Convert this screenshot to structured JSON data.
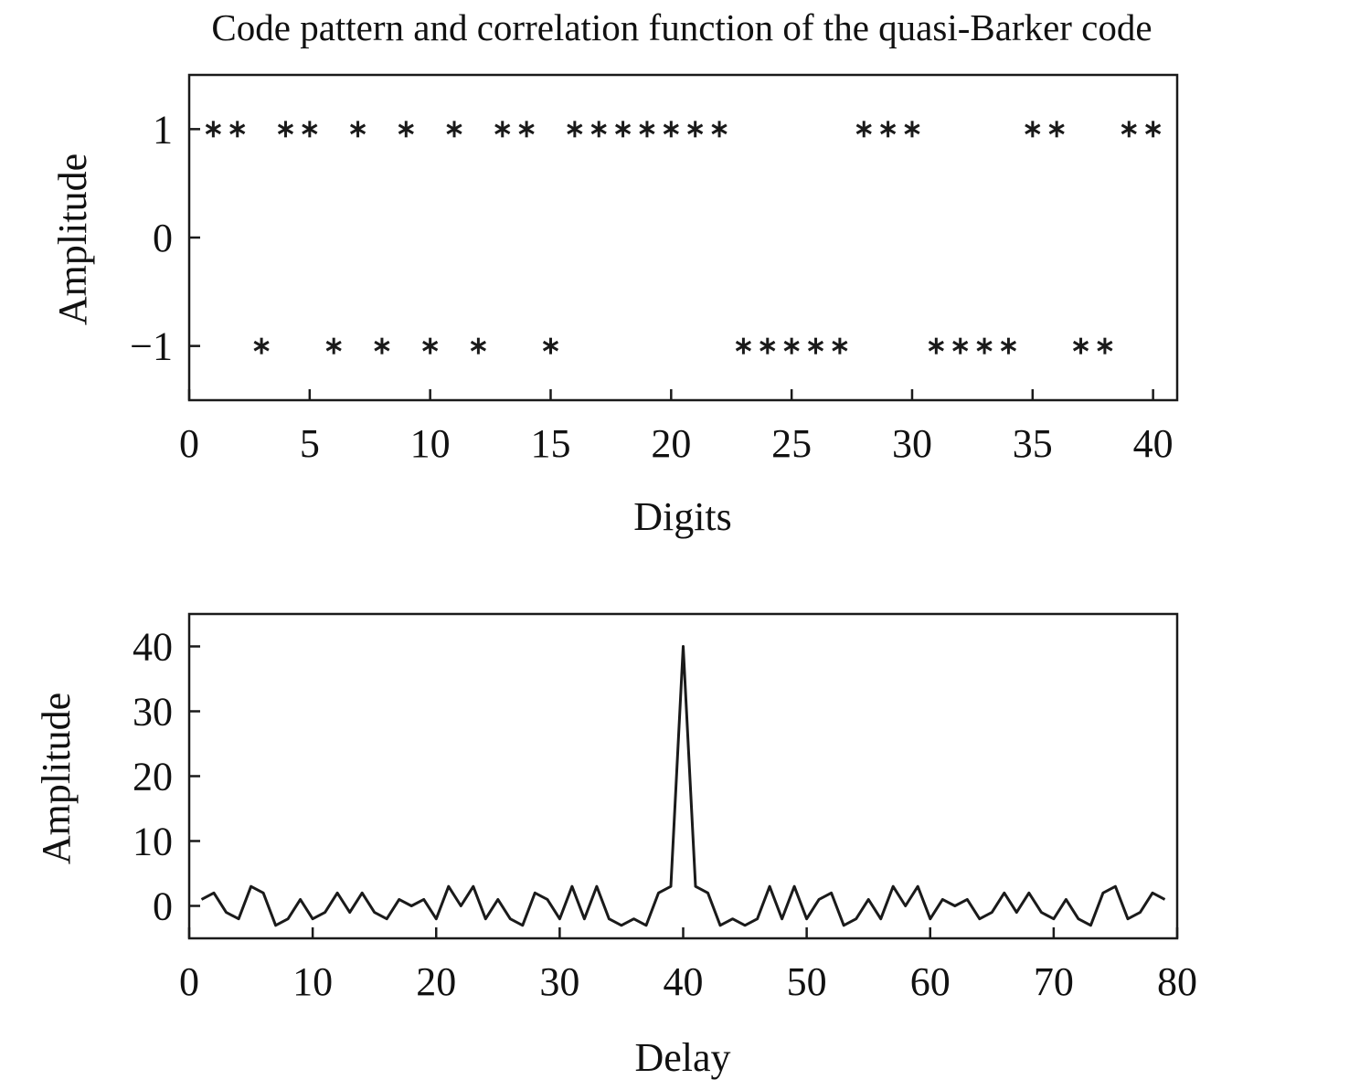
{
  "title": "Code pattern and correlation function of the quasi-Barker code",
  "colors": {
    "line": "#1a1a1a",
    "background": "#ffffff"
  },
  "chart_data": [
    {
      "type": "scatter",
      "marker": "asterisk",
      "xlabel": "Digits",
      "ylabel": "Amplitude",
      "xlim": [
        0,
        41
      ],
      "ylim": [
        -1.5,
        1.5
      ],
      "xticks": [
        0,
        5,
        10,
        15,
        20,
        25,
        30,
        35,
        40
      ],
      "yticks": [
        -1,
        0,
        1
      ],
      "ytick_labels": [
        "−1",
        "0",
        "1"
      ],
      "grid": false,
      "x": [
        1,
        2,
        3,
        4,
        5,
        6,
        7,
        8,
        9,
        10,
        11,
        12,
        13,
        14,
        15,
        16,
        17,
        18,
        19,
        20,
        21,
        22,
        23,
        24,
        25,
        26,
        27,
        28,
        29,
        30,
        31,
        32,
        33,
        34,
        35,
        36,
        37,
        38,
        39,
        40
      ],
      "y": [
        1,
        1,
        -1,
        1,
        1,
        -1,
        1,
        -1,
        1,
        -1,
        1,
        -1,
        1,
        1,
        -1,
        1,
        1,
        1,
        1,
        1,
        1,
        1,
        -1,
        -1,
        -1,
        -1,
        -1,
        1,
        1,
        1,
        -1,
        -1,
        -1,
        -1,
        1,
        1,
        -1,
        -1,
        1,
        1
      ]
    },
    {
      "type": "line",
      "xlabel": "Delay",
      "ylabel": "Amplitude",
      "xlim": [
        0,
        80
      ],
      "ylim": [
        -5,
        45
      ],
      "xticks": [
        0,
        10,
        20,
        30,
        40,
        50,
        60,
        70,
        80
      ],
      "yticks": [
        0,
        10,
        20,
        30,
        40
      ],
      "grid": false,
      "x": [
        1,
        2,
        3,
        4,
        5,
        6,
        7,
        8,
        9,
        10,
        11,
        12,
        13,
        14,
        15,
        16,
        17,
        18,
        19,
        20,
        21,
        22,
        23,
        24,
        25,
        26,
        27,
        28,
        29,
        30,
        31,
        32,
        33,
        34,
        35,
        36,
        37,
        38,
        39,
        40,
        41,
        42,
        43,
        44,
        45,
        46,
        47,
        48,
        49,
        50,
        51,
        52,
        53,
        54,
        55,
        56,
        57,
        58,
        59,
        60,
        61,
        62,
        63,
        64,
        65,
        66,
        67,
        68,
        69,
        70,
        71,
        72,
        73,
        74,
        75,
        76,
        77,
        78,
        79
      ],
      "y": [
        1,
        2,
        -1,
        -2,
        3,
        2,
        -3,
        -2,
        1,
        -2,
        -1,
        2,
        -1,
        2,
        -1,
        -2,
        1,
        0,
        1,
        -2,
        3,
        0,
        3,
        -2,
        1,
        -2,
        -3,
        2,
        1,
        -2,
        3,
        -2,
        3,
        -2,
        -3,
        -2,
        -3,
        2,
        3,
        40,
        3,
        2,
        -3,
        -2,
        -3,
        -2,
        3,
        -2,
        3,
        -2,
        1,
        2,
        -3,
        -2,
        1,
        -2,
        3,
        0,
        3,
        -2,
        1,
        0,
        1,
        -2,
        -1,
        2,
        -1,
        2,
        -1,
        -2,
        1,
        -2,
        -3,
        2,
        3,
        -2,
        -1,
        2,
        1
      ]
    }
  ]
}
